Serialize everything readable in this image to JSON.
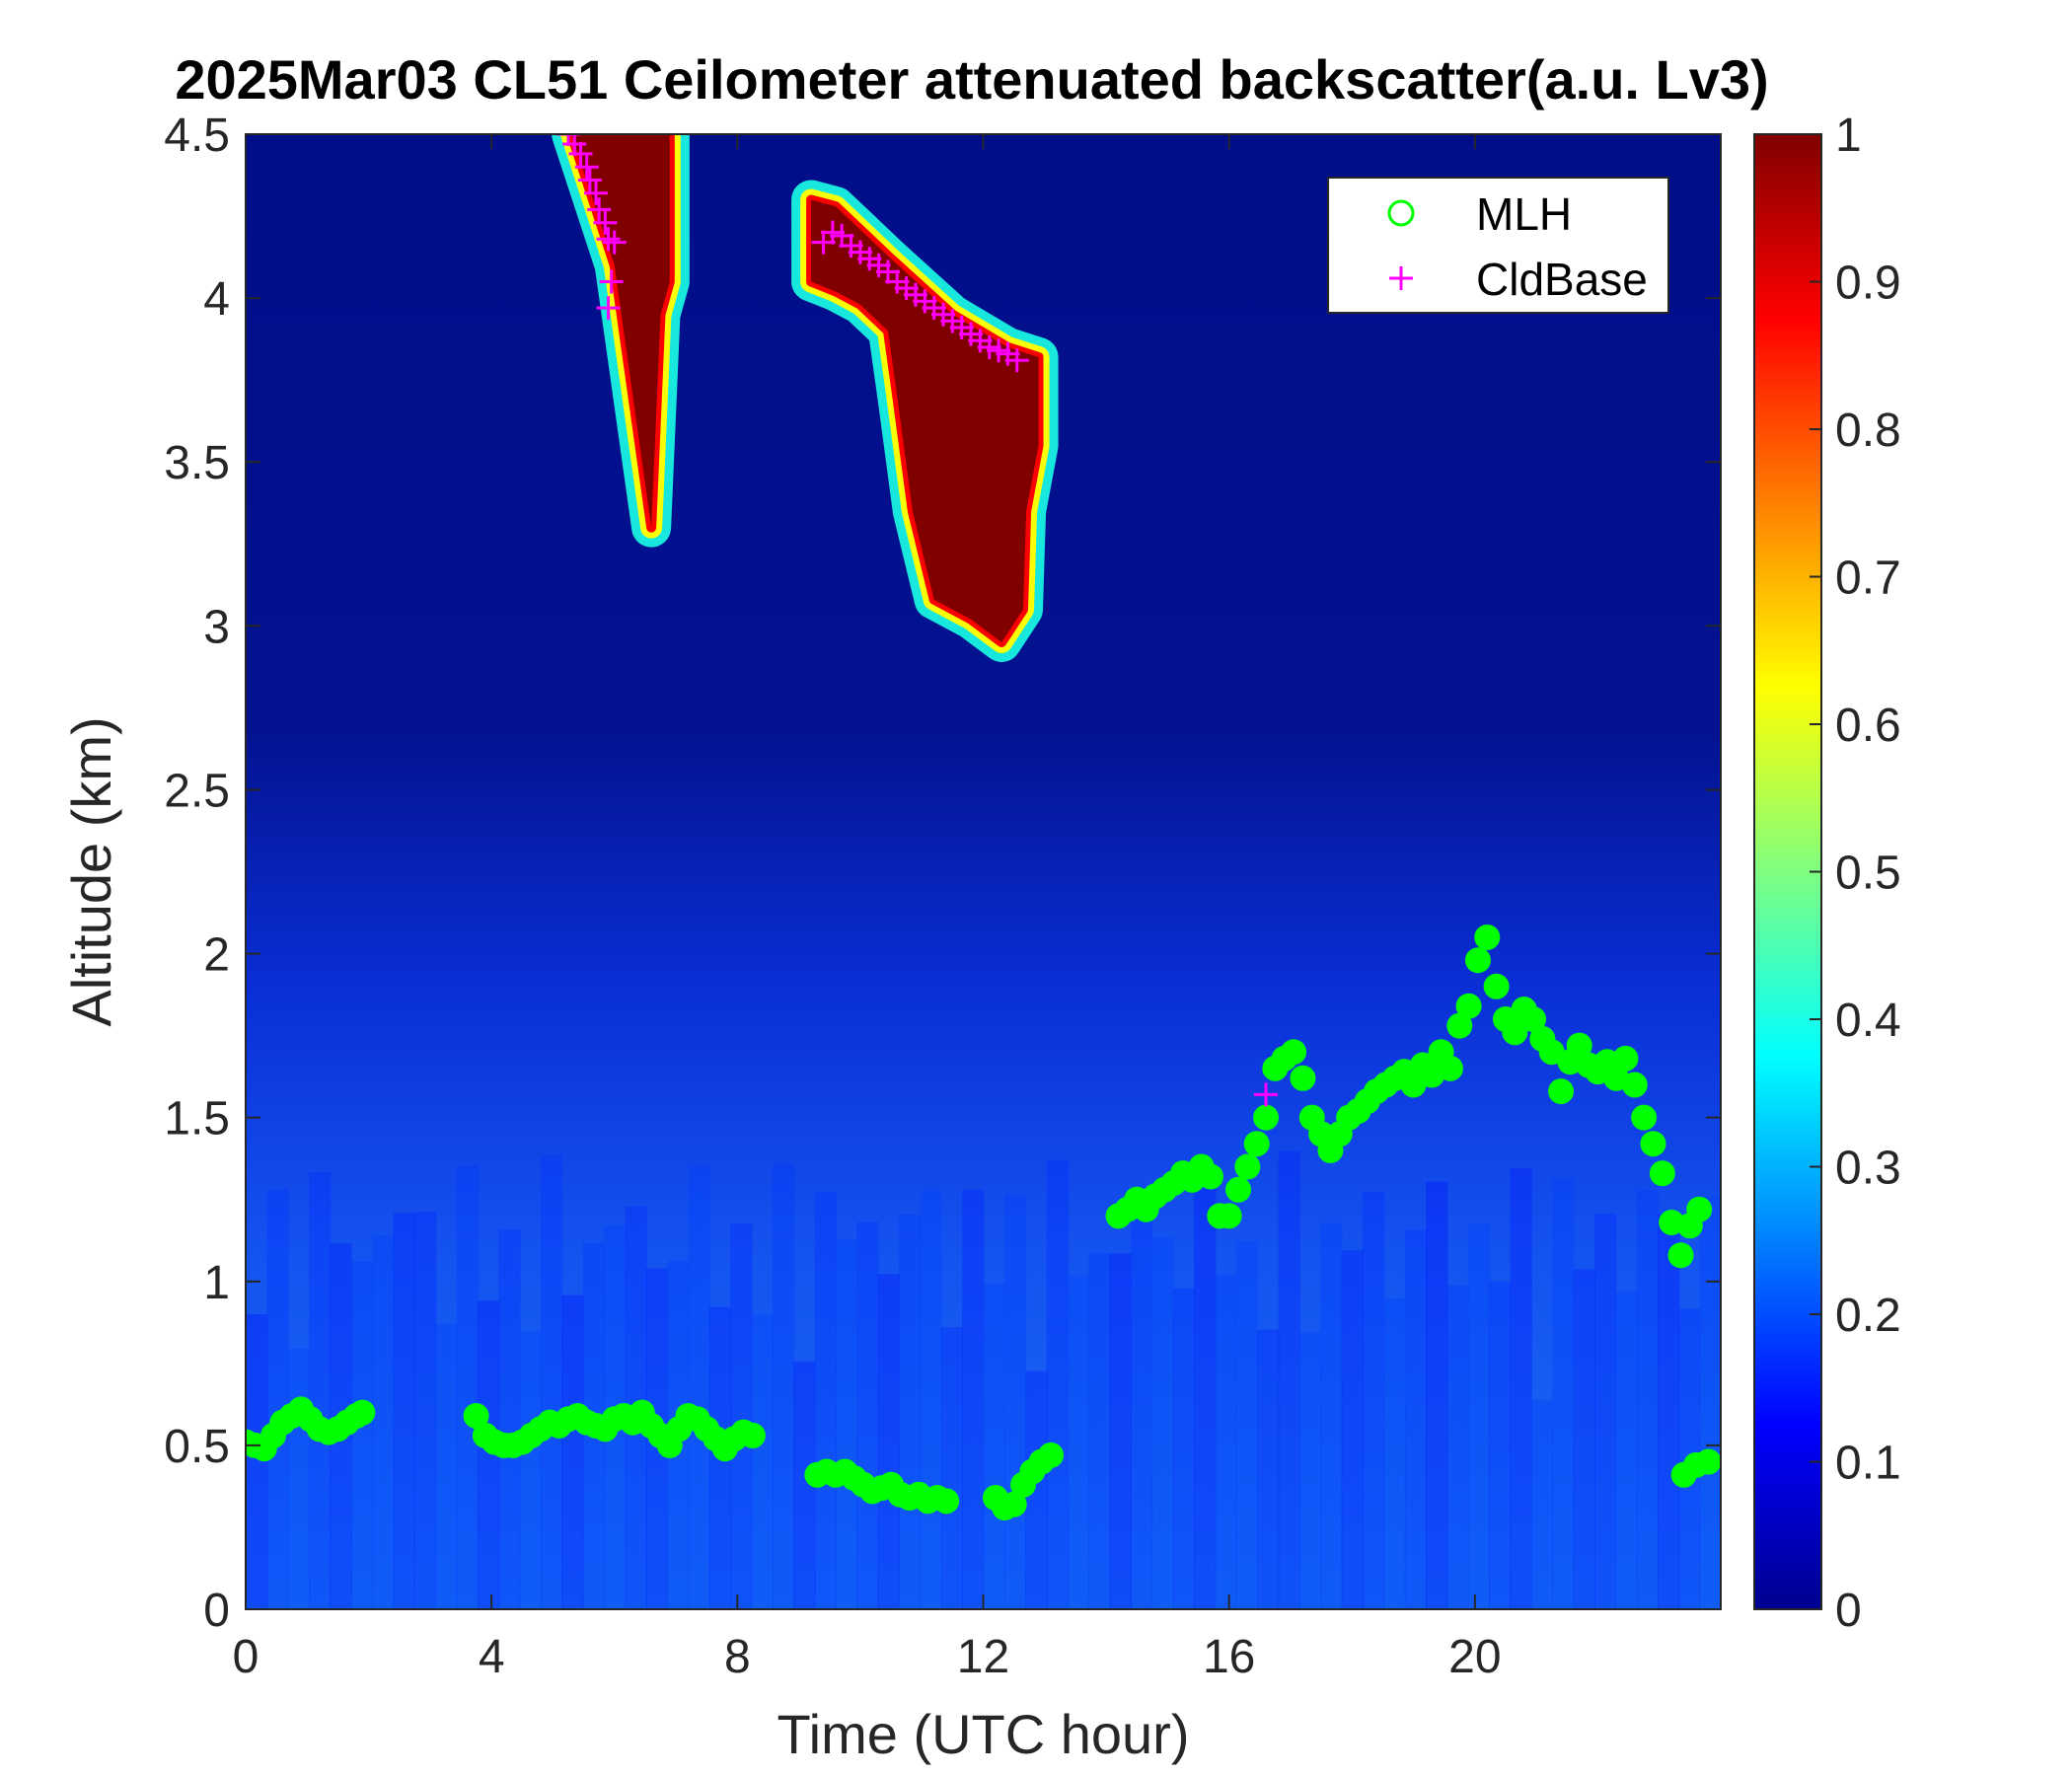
{
  "chart_data": {
    "type": "heatmap",
    "title": "2025Mar03 CL51 Ceilometer attenuated backscatter(a.u. Lv3)",
    "xlabel": "Time (UTC hour)",
    "ylabel": "Altitude (km)",
    "xlim": [
      0,
      24
    ],
    "ylim": [
      0,
      4.5
    ],
    "xticks": [
      "0",
      "4",
      "8",
      "12",
      "16",
      "20"
    ],
    "xtick_values": [
      0,
      4,
      8,
      12,
      16,
      20
    ],
    "yticks": [
      "0",
      "0.5",
      "1",
      "1.5",
      "2",
      "2.5",
      "3",
      "3.5",
      "4",
      "4.5"
    ],
    "ytick_values": [
      0,
      0.5,
      1,
      1.5,
      2,
      2.5,
      3,
      3.5,
      4,
      4.5
    ],
    "colorbar": {
      "colormap": "jet",
      "range": [
        0,
        1
      ],
      "ticks": [
        "0",
        "0.1",
        "0.2",
        "0.3",
        "0.4",
        "0.5",
        "0.6",
        "0.7",
        "0.8",
        "0.9",
        "1"
      ],
      "tick_values": [
        0,
        0.1,
        0.2,
        0.3,
        0.4,
        0.5,
        0.6,
        0.7,
        0.8,
        0.9,
        1
      ]
    },
    "grid": false,
    "legend_position": "top-right",
    "heatmap_regions": {
      "boundary_layer_value": 0.15,
      "free_troposphere_value": 0.03,
      "clouds": [
        {
          "polygon": [
            [
              5.3,
              4.5
            ],
            [
              6.9,
              4.5
            ],
            [
              6.9,
              4.05
            ],
            [
              6.75,
              3.95
            ],
            [
              6.6,
              3.3
            ],
            [
              6.45,
              3.5
            ],
            [
              6.0,
              4.1
            ],
            [
              5.3,
              4.5
            ]
          ],
          "value": 1
        },
        {
          "polygon": [
            [
              9.2,
              4.3
            ],
            [
              9.6,
              4.28
            ],
            [
              10.5,
              4.12
            ],
            [
              11.5,
              3.95
            ],
            [
              12.4,
              3.85
            ],
            [
              12.9,
              3.82
            ],
            [
              12.9,
              3.55
            ],
            [
              12.7,
              3.35
            ],
            [
              12.65,
              3.05
            ],
            [
              12.3,
              2.95
            ],
            [
              11.8,
              3.02
            ],
            [
              11.2,
              3.08
            ],
            [
              10.85,
              3.35
            ],
            [
              10.6,
              3.7
            ],
            [
              10.45,
              3.9
            ],
            [
              10.0,
              3.98
            ],
            [
              9.6,
              4.02
            ],
            [
              9.2,
              4.05
            ]
          ],
          "value": 1
        }
      ]
    },
    "series": [
      {
        "name": "MLH",
        "marker": "circle",
        "color": "#00ff00",
        "points": [
          [
            0,
            0.51
          ],
          [
            0.15,
            0.5
          ],
          [
            0.3,
            0.49
          ],
          [
            0.45,
            0.53
          ],
          [
            0.6,
            0.57
          ],
          [
            0.75,
            0.59
          ],
          [
            0.9,
            0.61
          ],
          [
            1.05,
            0.58
          ],
          [
            1.2,
            0.55
          ],
          [
            1.35,
            0.54
          ],
          [
            1.5,
            0.55
          ],
          [
            1.65,
            0.57
          ],
          [
            1.8,
            0.59
          ],
          [
            1.9,
            0.6
          ],
          [
            3.75,
            0.59
          ],
          [
            3.9,
            0.53
          ],
          [
            4.05,
            0.51
          ],
          [
            4.2,
            0.5
          ],
          [
            4.35,
            0.5
          ],
          [
            4.5,
            0.51
          ],
          [
            4.65,
            0.53
          ],
          [
            4.8,
            0.55
          ],
          [
            4.95,
            0.57
          ],
          [
            5.1,
            0.56
          ],
          [
            5.25,
            0.58
          ],
          [
            5.4,
            0.59
          ],
          [
            5.55,
            0.57
          ],
          [
            5.7,
            0.56
          ],
          [
            5.85,
            0.55
          ],
          [
            6.0,
            0.58
          ],
          [
            6.15,
            0.59
          ],
          [
            6.3,
            0.57
          ],
          [
            6.45,
            0.6
          ],
          [
            6.6,
            0.56
          ],
          [
            6.75,
            0.53
          ],
          [
            6.9,
            0.5
          ],
          [
            7.05,
            0.55
          ],
          [
            7.2,
            0.59
          ],
          [
            7.35,
            0.58
          ],
          [
            7.5,
            0.55
          ],
          [
            7.65,
            0.52
          ],
          [
            7.8,
            0.49
          ],
          [
            7.95,
            0.52
          ],
          [
            8.1,
            0.54
          ],
          [
            8.25,
            0.53
          ],
          [
            9.3,
            0.41
          ],
          [
            9.45,
            0.42
          ],
          [
            9.6,
            0.41
          ],
          [
            9.75,
            0.42
          ],
          [
            9.9,
            0.4
          ],
          [
            10.05,
            0.38
          ],
          [
            10.2,
            0.36
          ],
          [
            10.35,
            0.37
          ],
          [
            10.5,
            0.38
          ],
          [
            10.65,
            0.35
          ],
          [
            10.8,
            0.34
          ],
          [
            10.95,
            0.35
          ],
          [
            11.1,
            0.33
          ],
          [
            11.25,
            0.34
          ],
          [
            11.4,
            0.33
          ],
          [
            12.2,
            0.34
          ],
          [
            12.35,
            0.31
          ],
          [
            12.5,
            0.32
          ],
          [
            12.65,
            0.38
          ],
          [
            12.8,
            0.42
          ],
          [
            12.95,
            0.45
          ],
          [
            13.1,
            0.47
          ],
          [
            14.2,
            1.2
          ],
          [
            14.35,
            1.22
          ],
          [
            14.5,
            1.25
          ],
          [
            14.65,
            1.22
          ],
          [
            14.8,
            1.26
          ],
          [
            14.95,
            1.28
          ],
          [
            15.1,
            1.3
          ],
          [
            15.25,
            1.33
          ],
          [
            15.4,
            1.31
          ],
          [
            15.55,
            1.35
          ],
          [
            15.7,
            1.32
          ],
          [
            15.85,
            1.2
          ],
          [
            16.0,
            1.2
          ],
          [
            16.15,
            1.28
          ],
          [
            16.3,
            1.35
          ],
          [
            16.45,
            1.42
          ],
          [
            16.6,
            1.5
          ],
          [
            16.75,
            1.65
          ],
          [
            16.9,
            1.68
          ],
          [
            17.05,
            1.7
          ],
          [
            17.2,
            1.62
          ],
          [
            17.35,
            1.5
          ],
          [
            17.5,
            1.45
          ],
          [
            17.65,
            1.4
          ],
          [
            17.8,
            1.45
          ],
          [
            17.95,
            1.5
          ],
          [
            18.1,
            1.52
          ],
          [
            18.25,
            1.55
          ],
          [
            18.4,
            1.58
          ],
          [
            18.55,
            1.6
          ],
          [
            18.7,
            1.62
          ],
          [
            18.85,
            1.64
          ],
          [
            19.0,
            1.6
          ],
          [
            19.15,
            1.66
          ],
          [
            19.3,
            1.63
          ],
          [
            19.45,
            1.7
          ],
          [
            19.6,
            1.65
          ],
          [
            19.75,
            1.78
          ],
          [
            19.9,
            1.84
          ],
          [
            20.05,
            1.98
          ],
          [
            20.2,
            2.05
          ],
          [
            20.35,
            1.9
          ],
          [
            20.5,
            1.8
          ],
          [
            20.65,
            1.76
          ],
          [
            20.8,
            1.83
          ],
          [
            20.95,
            1.8
          ],
          [
            21.1,
            1.74
          ],
          [
            21.25,
            1.7
          ],
          [
            21.4,
            1.58
          ],
          [
            21.55,
            1.67
          ],
          [
            21.7,
            1.72
          ],
          [
            21.85,
            1.66
          ],
          [
            22.0,
            1.64
          ],
          [
            22.15,
            1.67
          ],
          [
            22.3,
            1.62
          ],
          [
            22.45,
            1.68
          ],
          [
            22.6,
            1.6
          ],
          [
            22.75,
            1.5
          ],
          [
            22.9,
            1.42
          ],
          [
            23.05,
            1.33
          ],
          [
            23.2,
            1.18
          ],
          [
            23.35,
            1.08
          ],
          [
            23.5,
            1.17
          ],
          [
            23.65,
            1.22
          ],
          [
            23.4,
            0.41
          ],
          [
            23.6,
            0.44
          ],
          [
            23.8,
            0.45
          ]
        ]
      },
      {
        "name": "CldBase",
        "marker": "plus",
        "color": "#ff00ff",
        "points": [
          [
            5.25,
            4.5
          ],
          [
            5.35,
            4.47
          ],
          [
            5.45,
            4.44
          ],
          [
            5.55,
            4.4
          ],
          [
            5.6,
            4.36
          ],
          [
            5.7,
            4.32
          ],
          [
            5.75,
            4.27
          ],
          [
            5.85,
            4.23
          ],
          [
            5.9,
            4.18
          ],
          [
            6.0,
            4.17
          ],
          [
            5.95,
            4.05
          ],
          [
            5.9,
            3.97
          ],
          [
            16.6,
            1.57
          ],
          [
            9.4,
            4.17
          ],
          [
            9.55,
            4.2
          ],
          [
            9.7,
            4.19
          ],
          [
            9.85,
            4.16
          ],
          [
            10.0,
            4.14
          ],
          [
            10.15,
            4.12
          ],
          [
            10.3,
            4.1
          ],
          [
            10.45,
            4.08
          ],
          [
            10.6,
            4.05
          ],
          [
            10.75,
            4.03
          ],
          [
            10.9,
            4.01
          ],
          [
            11.05,
            3.99
          ],
          [
            11.2,
            3.97
          ],
          [
            11.35,
            3.95
          ],
          [
            11.5,
            3.93
          ],
          [
            11.65,
            3.91
          ],
          [
            11.8,
            3.89
          ],
          [
            11.95,
            3.87
          ],
          [
            12.1,
            3.85
          ],
          [
            12.25,
            3.84
          ],
          [
            12.4,
            3.83
          ],
          [
            12.55,
            3.81
          ]
        ]
      }
    ]
  }
}
